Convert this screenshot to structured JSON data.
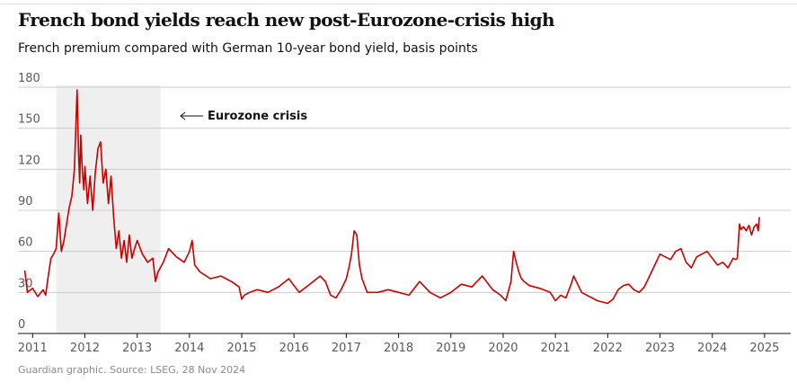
{
  "chart_data": {
    "type": "line",
    "title": "French bond yields reach new post-Eurozone-crisis high",
    "subtitle": "French premium compared with German 10-year bond yield, basis points",
    "source": "Guardian graphic. Source: LSEG, 28 Nov 2024",
    "xlabel": "",
    "ylabel": "",
    "ylim": [
      0,
      180
    ],
    "yticks": [
      0,
      30,
      60,
      90,
      120,
      150,
      180
    ],
    "xlim": [
      2010.72,
      2025.5
    ],
    "xticks": [
      2011,
      2012,
      2013,
      2014,
      2015,
      2016,
      2017,
      2018,
      2019,
      2020,
      2021,
      2022,
      2023,
      2024,
      2025
    ],
    "grid": true,
    "highlight_region": {
      "start": 2011.45,
      "end": 2013.45,
      "color": "#efefef"
    },
    "annotation": {
      "text": "Eurozone crisis",
      "arrow": "left"
    },
    "line_color": "#c70000",
    "series": [
      {
        "name": "French premium over German 10-year bond yield",
        "x": [
          2010.85,
          2010.9,
          2011.0,
          2011.1,
          2011.2,
          2011.25,
          2011.3,
          2011.35,
          2011.4,
          2011.45,
          2011.5,
          2011.55,
          2011.6,
          2011.65,
          2011.7,
          2011.75,
          2011.8,
          2011.85,
          2011.88,
          2011.9,
          2011.92,
          2011.95,
          2011.98,
          2012.0,
          2012.05,
          2012.1,
          2012.15,
          2012.2,
          2012.25,
          2012.3,
          2012.35,
          2012.4,
          2012.45,
          2012.5,
          2012.55,
          2012.6,
          2012.65,
          2012.7,
          2012.75,
          2012.8,
          2012.85,
          2012.9,
          2012.95,
          2013.0,
          2013.1,
          2013.2,
          2013.3,
          2013.35,
          2013.4,
          2013.5,
          2013.6,
          2013.75,
          2013.9,
          2014.0,
          2014.05,
          2014.1,
          2014.2,
          2014.4,
          2014.6,
          2014.8,
          2014.95,
          2015.0,
          2015.05,
          2015.15,
          2015.3,
          2015.5,
          2015.7,
          2015.9,
          2016.1,
          2016.3,
          2016.5,
          2016.6,
          2016.7,
          2016.8,
          2016.9,
          2017.0,
          2017.05,
          2017.1,
          2017.15,
          2017.2,
          2017.25,
          2017.3,
          2017.4,
          2017.6,
          2017.8,
          2018.0,
          2018.2,
          2018.4,
          2018.6,
          2018.8,
          2019.0,
          2019.2,
          2019.4,
          2019.6,
          2019.8,
          2019.95,
          2020.05,
          2020.15,
          2020.2,
          2020.25,
          2020.3,
          2020.35,
          2020.4,
          2020.5,
          2020.7,
          2020.9,
          2021.0,
          2021.1,
          2021.2,
          2021.3,
          2021.35,
          2021.4,
          2021.5,
          2021.6,
          2021.8,
          2022.0,
          2022.1,
          2022.2,
          2022.3,
          2022.4,
          2022.5,
          2022.6,
          2022.7,
          2022.8,
          2022.9,
          2023.0,
          2023.1,
          2023.2,
          2023.3,
          2023.4,
          2023.5,
          2023.6,
          2023.7,
          2023.8,
          2023.9,
          2024.0,
          2024.1,
          2024.2,
          2024.3,
          2024.4,
          2024.45,
          2024.48,
          2024.52,
          2024.55,
          2024.6,
          2024.65,
          2024.7,
          2024.75,
          2024.8,
          2024.85,
          2024.88,
          2024.9
        ],
        "values": [
          46,
          30,
          33,
          27,
          32,
          28,
          42,
          55,
          58,
          62,
          88,
          60,
          68,
          80,
          92,
          100,
          120,
          178,
          130,
          110,
          145,
          120,
          105,
          122,
          95,
          115,
          90,
          118,
          135,
          140,
          110,
          120,
          95,
          115,
          85,
          62,
          75,
          55,
          68,
          52,
          72,
          55,
          62,
          68,
          58,
          52,
          55,
          38,
          45,
          52,
          62,
          56,
          52,
          60,
          68,
          50,
          45,
          40,
          42,
          38,
          34,
          25,
          28,
          30,
          32,
          30,
          34,
          40,
          30,
          36,
          42,
          38,
          28,
          26,
          32,
          40,
          48,
          58,
          75,
          72,
          50,
          40,
          30,
          30,
          32,
          30,
          28,
          38,
          30,
          26,
          30,
          36,
          34,
          42,
          32,
          28,
          24,
          38,
          60,
          52,
          45,
          40,
          38,
          35,
          33,
          30,
          24,
          28,
          26,
          36,
          42,
          38,
          30,
          28,
          24,
          22,
          25,
          32,
          35,
          36,
          32,
          30,
          34,
          42,
          50,
          58,
          56,
          54,
          60,
          62,
          52,
          48,
          56,
          58,
          60,
          55,
          50,
          52,
          48,
          55,
          54,
          55,
          80,
          76,
          78,
          75,
          79,
          72,
          78,
          80,
          75,
          85
        ]
      }
    ]
  }
}
